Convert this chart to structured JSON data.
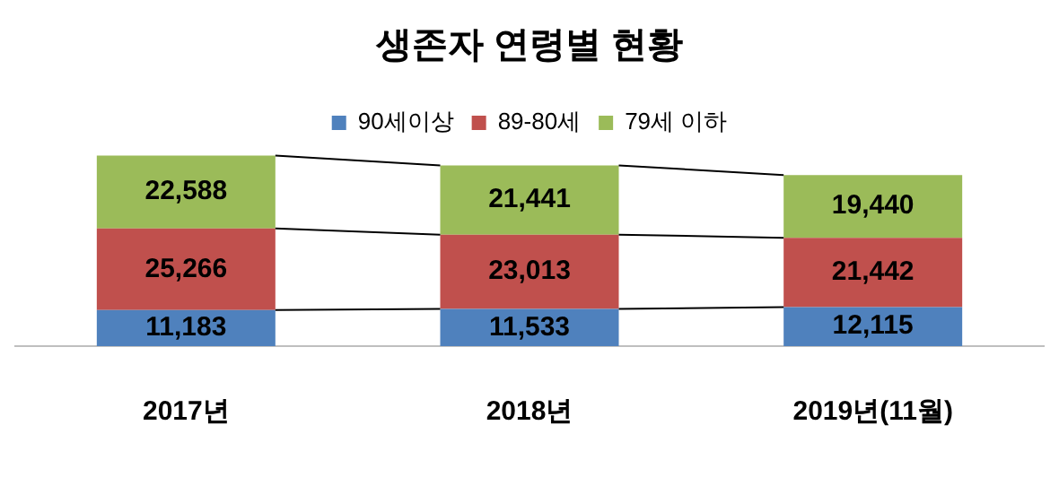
{
  "chart_data": {
    "type": "bar",
    "title": "생존자 연령별 현황",
    "stacked": true,
    "legend": "top",
    "categories": [
      "2017년",
      "2018년",
      "2019년(11월)"
    ],
    "series": [
      {
        "name": "90세이상",
        "color": "#4f81bd",
        "values": [
          11183,
          11533,
          12115
        ],
        "value_labels": [
          "11,183",
          "11,533",
          "12,115"
        ]
      },
      {
        "name": "89-80세",
        "color": "#c0504d",
        "values": [
          25266,
          23013,
          21442
        ],
        "value_labels": [
          "25,266",
          "23,013",
          "21,442"
        ]
      },
      {
        "name": "79세 이하",
        "color": "#9bbb59",
        "values": [
          22588,
          21441,
          19440
        ],
        "value_labels": [
          "22,588",
          "21,441",
          "19,440"
        ]
      }
    ]
  }
}
